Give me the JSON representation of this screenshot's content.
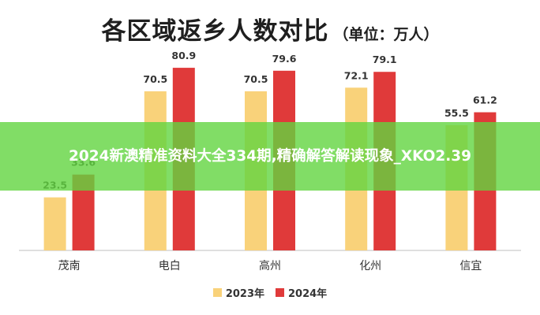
{
  "chart_data": {
    "type": "bar",
    "title": "各区域返乡人数对比",
    "unit_label": "（单位：万人）",
    "categories": [
      "茂南",
      "电白",
      "高州",
      "化州",
      "信宜"
    ],
    "series": [
      {
        "name": "2023年",
        "values": [
          23.5,
          70.5,
          70.5,
          72.1,
          55.5
        ],
        "color": "#f9d27a"
      },
      {
        "name": "2024年",
        "values": [
          33.6,
          80.9,
          79.6,
          79.1,
          61.2
        ],
        "color": "#e03a3a"
      }
    ],
    "ylim": [
      0,
      90
    ],
    "grid": false,
    "legend": "bottom-center"
  },
  "banner": {
    "text": "2024新澳精准资料大全334期,精确解答解读现象_XKO2.39"
  }
}
